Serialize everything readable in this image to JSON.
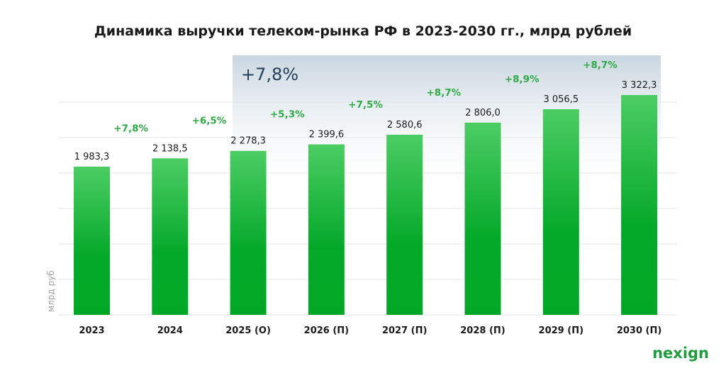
{
  "chart_data": {
    "type": "bar",
    "title": "Динамика выручки телеком-рынка РФ в 2023-2030 гг., млрд рублей",
    "ylabel": "млрд руб",
    "xlabel": "",
    "categories": [
      "2023",
      "2024",
      "2025 (О)",
      "2026 (П)",
      "2027 (П)",
      "2028 (П)",
      "2029 (П)",
      "2030 (П)"
    ],
    "values": [
      1983.3,
      2138.5,
      2278.3,
      2399.6,
      2580.6,
      2806.0,
      3056.5,
      3322.3
    ],
    "value_labels": [
      "1 983,3",
      "2 138,5",
      "2 278,3",
      "2 399,6",
      "2 580,6",
      "2 806,0",
      "3 056,5",
      "3 322,3"
    ],
    "growth_labels": [
      "+7,8%",
      "+6,5%",
      "+5,3%",
      "+7,5%",
      "+8,7%",
      "+8,9%",
      "+8,7%"
    ],
    "highlight": {
      "label": "+7,8%",
      "from_category": "2025 (О)",
      "to_category": "2030 (П)"
    },
    "grid": true,
    "colors": {
      "bar_top": "#4ccd63",
      "bar_bottom": "#02a725",
      "growth": "#2fa845",
      "highlight": "#c9d6e0",
      "highlight_text": "#25405a"
    }
  },
  "brand": {
    "logo": "nexign"
  }
}
